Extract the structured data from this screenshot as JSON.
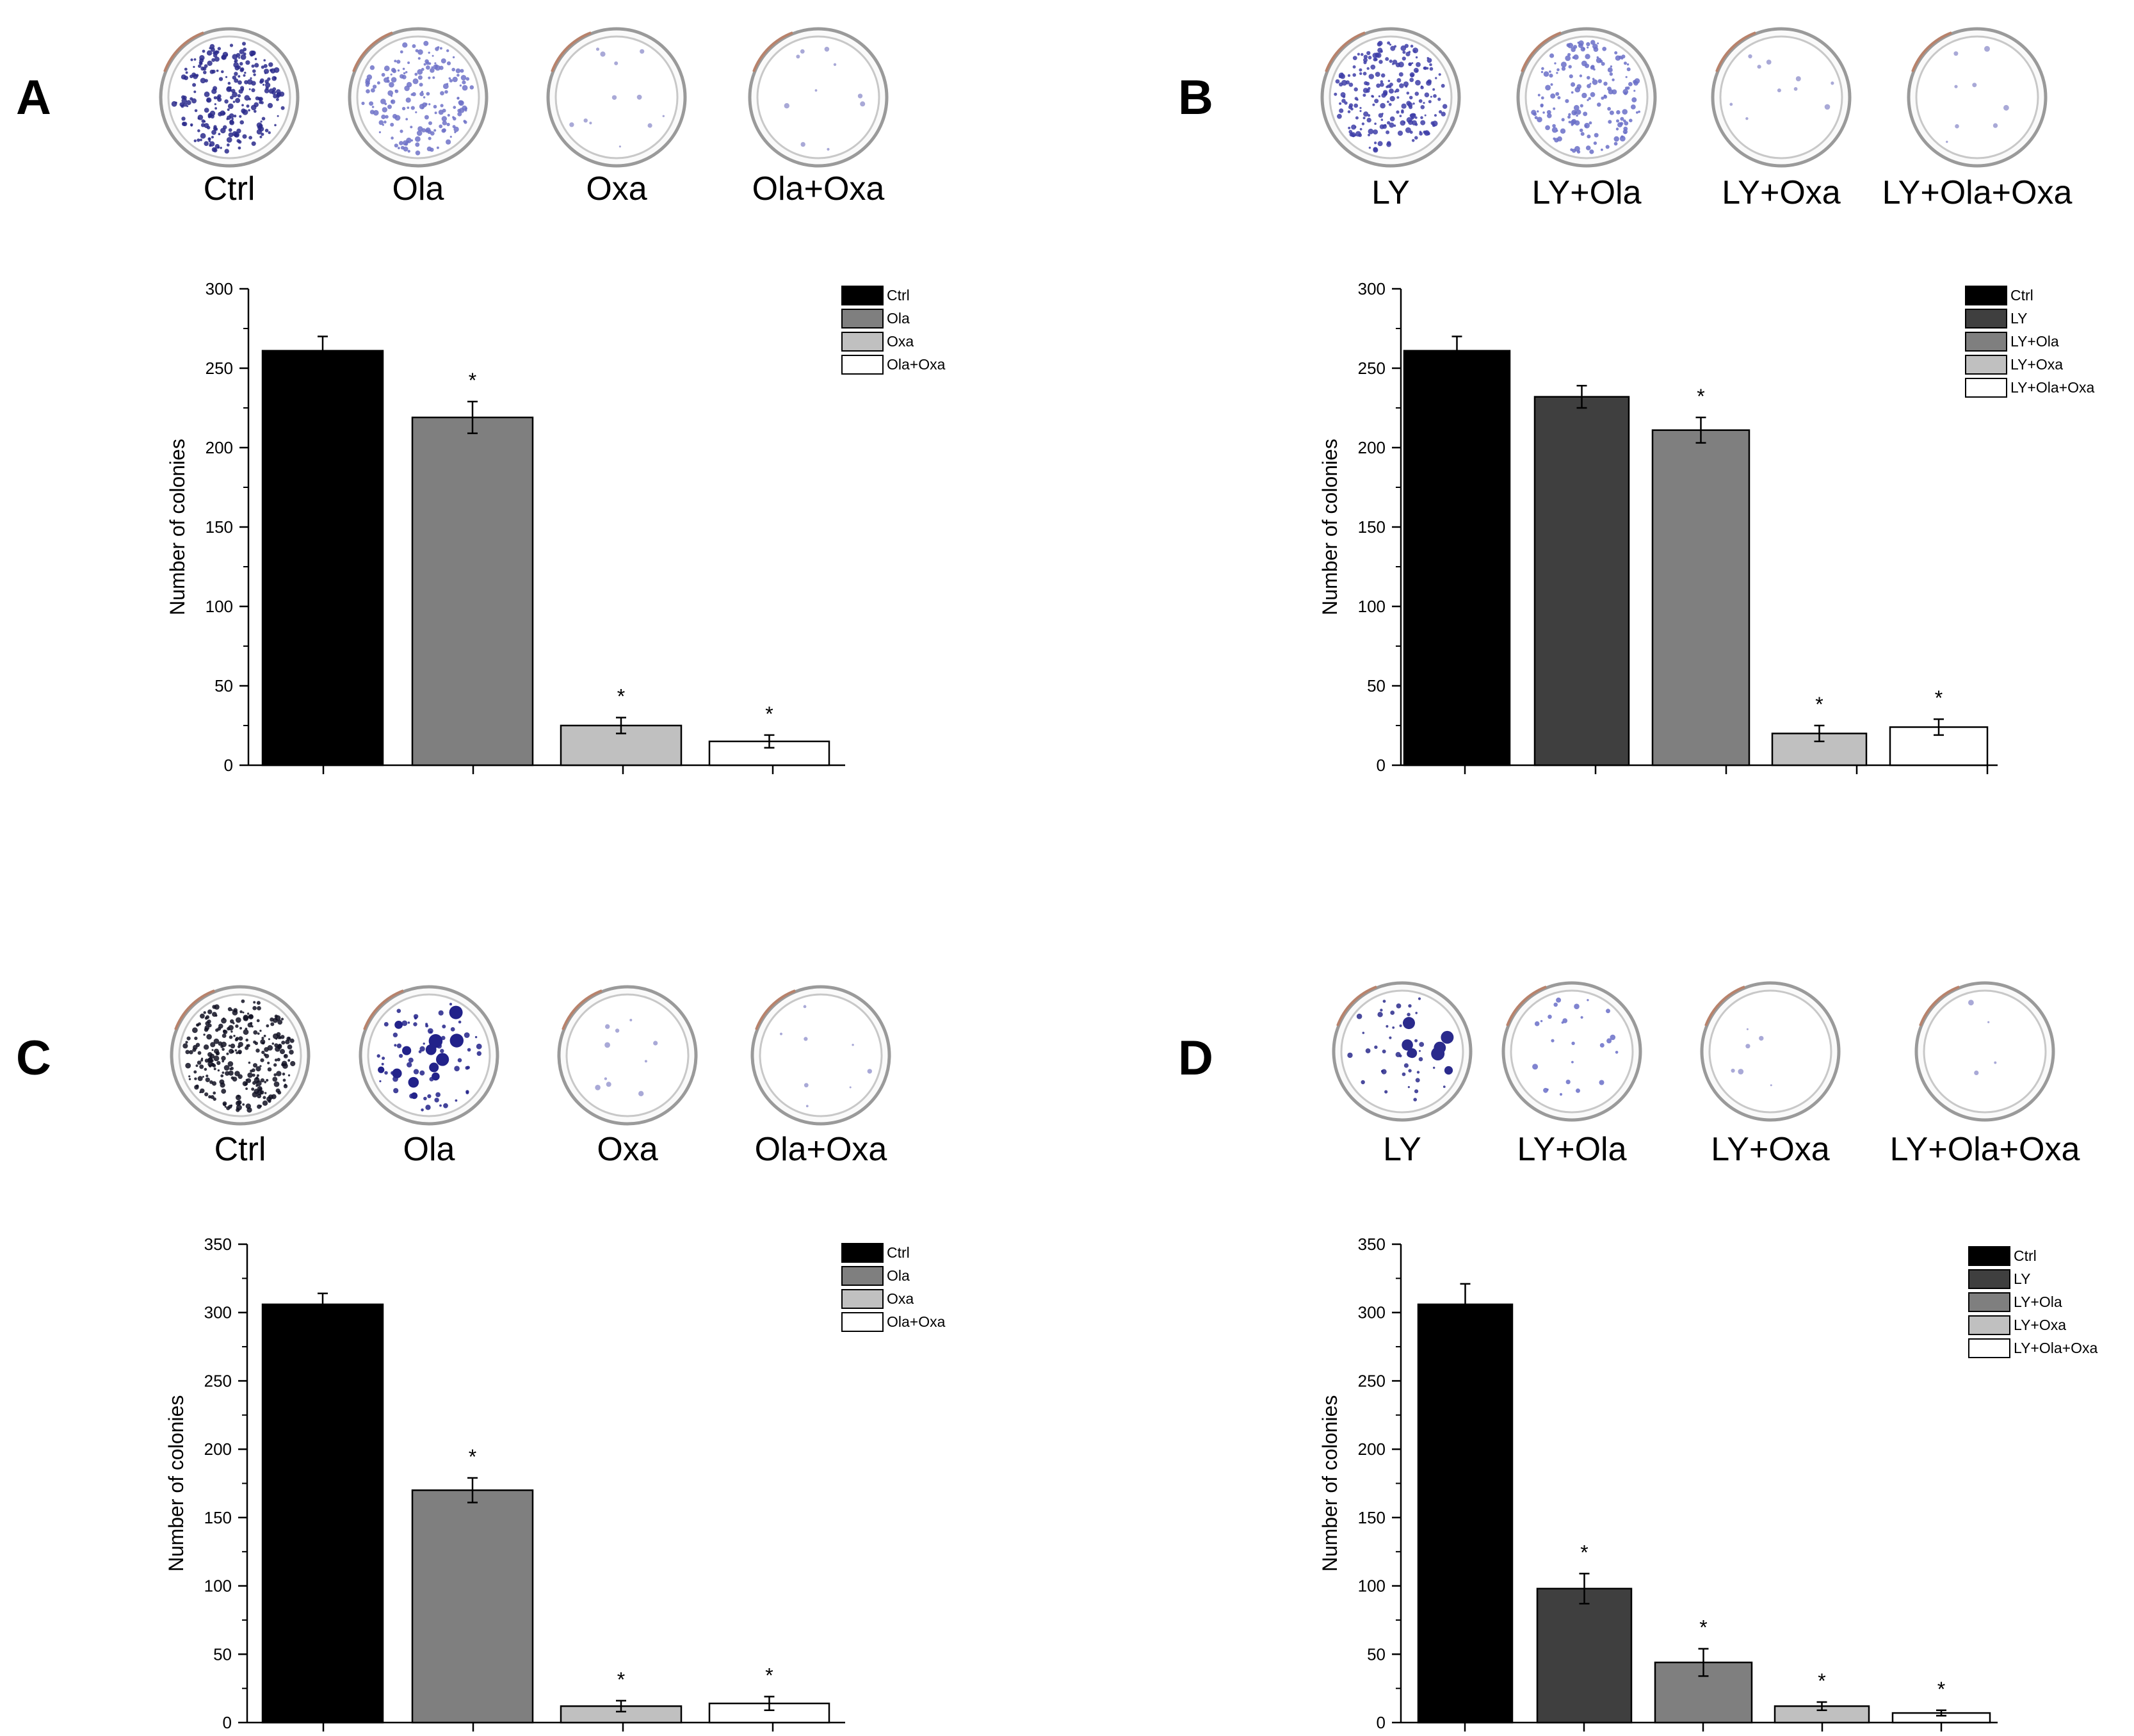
{
  "panels": [
    {
      "letter": "A",
      "dish_labels": [
        "Ctrl",
        "Ola",
        "Oxa",
        "Ola+Oxa"
      ],
      "dish_styles": [
        {
          "dots": 260,
          "color": "#2a2a8c",
          "big": 0
        },
        {
          "dots": 190,
          "color": "#6f72c8",
          "big": 0
        },
        {
          "dots": 12,
          "color": "#9a9ad0",
          "big": 0
        },
        {
          "dots": 10,
          "color": "#9a9ad0",
          "big": 0
        }
      ]
    },
    {
      "letter": "B",
      "dish_labels": [
        "LY",
        "LY+Ola",
        "LY+Oxa",
        "LY+Ola+Oxa"
      ],
      "dish_styles": [
        {
          "dots": 230,
          "color": "#3e3ea8",
          "big": 0
        },
        {
          "dots": 170,
          "color": "#6a6ec8",
          "big": 0
        },
        {
          "dots": 10,
          "color": "#9a9ad0",
          "big": 0
        },
        {
          "dots": 8,
          "color": "#9a9ad0",
          "big": 0
        }
      ]
    },
    {
      "letter": "C",
      "dish_labels": [
        "Ctrl",
        "Ola",
        "Oxa",
        "Ola+Oxa"
      ],
      "dish_styles": [
        {
          "dots": 280,
          "color": "#111122",
          "big": 0
        },
        {
          "dots": 60,
          "color": "#22228a",
          "big": 14
        },
        {
          "dots": 10,
          "color": "#9a9ad0",
          "big": 0
        },
        {
          "dots": 8,
          "color": "#9a9ad0",
          "big": 0
        }
      ]
    },
    {
      "letter": "D",
      "dish_labels": [
        "LY",
        "LY+Ola",
        "LY+Oxa",
        "LY+Ola+Oxa"
      ],
      "dish_styles": [
        {
          "dots": 40,
          "color": "#2a2a8c",
          "big": 8
        },
        {
          "dots": 25,
          "color": "#6a6ec8",
          "big": 0
        },
        {
          "dots": 6,
          "color": "#9a9ad0",
          "big": 0
        },
        {
          "dots": 4,
          "color": "#9a9ad0",
          "big": 0
        }
      ]
    }
  ],
  "chart_data": [
    {
      "type": "bar",
      "panel": "A",
      "ylabel": "Number of colonies",
      "ylim": [
        0,
        300
      ],
      "yticks": [
        0,
        50,
        100,
        150,
        200,
        250,
        300
      ],
      "legend_position": "top-right",
      "series": [
        {
          "name": "Ctrl",
          "value": 261,
          "error": 9,
          "significant": false,
          "color": "#000000"
        },
        {
          "name": "Ola",
          "value": 219,
          "error": 10,
          "significant": true,
          "color": "#7f7f7f"
        },
        {
          "name": "Oxa",
          "value": 25,
          "error": 5,
          "significant": true,
          "color": "#c0c0c0"
        },
        {
          "name": "Ola+Oxa",
          "value": 15,
          "error": 4,
          "significant": true,
          "color": "#ffffff"
        }
      ]
    },
    {
      "type": "bar",
      "panel": "B",
      "ylabel": "Number of colonies",
      "ylim": [
        0,
        300
      ],
      "yticks": [
        0,
        50,
        100,
        150,
        200,
        250,
        300
      ],
      "legend_position": "top-right",
      "series": [
        {
          "name": "Ctrl",
          "value": 261,
          "error": 9,
          "significant": false,
          "color": "#000000"
        },
        {
          "name": "LY",
          "value": 232,
          "error": 7,
          "significant": false,
          "color": "#3f3f3f"
        },
        {
          "name": "LY+Ola",
          "value": 211,
          "error": 8,
          "significant": true,
          "color": "#7f7f7f"
        },
        {
          "name": "LY+Oxa",
          "value": 20,
          "error": 5,
          "significant": true,
          "color": "#c0c0c0"
        },
        {
          "name": "LY+Ola+Oxa",
          "value": 24,
          "error": 5,
          "significant": true,
          "color": "#ffffff"
        }
      ]
    },
    {
      "type": "bar",
      "panel": "C",
      "ylabel": "Number of colonies",
      "ylim": [
        0,
        350
      ],
      "yticks": [
        0,
        50,
        100,
        150,
        200,
        250,
        300,
        350
      ],
      "legend_position": "top-right",
      "series": [
        {
          "name": "Ctrl",
          "value": 306,
          "error": 8,
          "significant": false,
          "color": "#000000"
        },
        {
          "name": "Ola",
          "value": 170,
          "error": 9,
          "significant": true,
          "color": "#7f7f7f"
        },
        {
          "name": "Oxa",
          "value": 12,
          "error": 4,
          "significant": true,
          "color": "#c0c0c0"
        },
        {
          "name": "Ola+Oxa",
          "value": 14,
          "error": 5,
          "significant": true,
          "color": "#ffffff"
        }
      ]
    },
    {
      "type": "bar",
      "panel": "D",
      "ylabel": "Number of colonies",
      "ylim": [
        0,
        350
      ],
      "yticks": [
        0,
        50,
        100,
        150,
        200,
        250,
        300,
        350
      ],
      "legend_position": "top-right",
      "series": [
        {
          "name": "Ctrl",
          "value": 306,
          "error": 15,
          "significant": false,
          "color": "#000000"
        },
        {
          "name": "LY",
          "value": 98,
          "error": 11,
          "significant": true,
          "color": "#3f3f3f"
        },
        {
          "name": "LY+Ola",
          "value": 44,
          "error": 10,
          "significant": true,
          "color": "#7f7f7f"
        },
        {
          "name": "LY+Oxa",
          "value": 12,
          "error": 3,
          "significant": true,
          "color": "#c0c0c0"
        },
        {
          "name": "LY+Ola+Oxa",
          "value": 7,
          "error": 2,
          "significant": true,
          "color": "#ffffff"
        }
      ]
    }
  ],
  "significance_marker": "*"
}
